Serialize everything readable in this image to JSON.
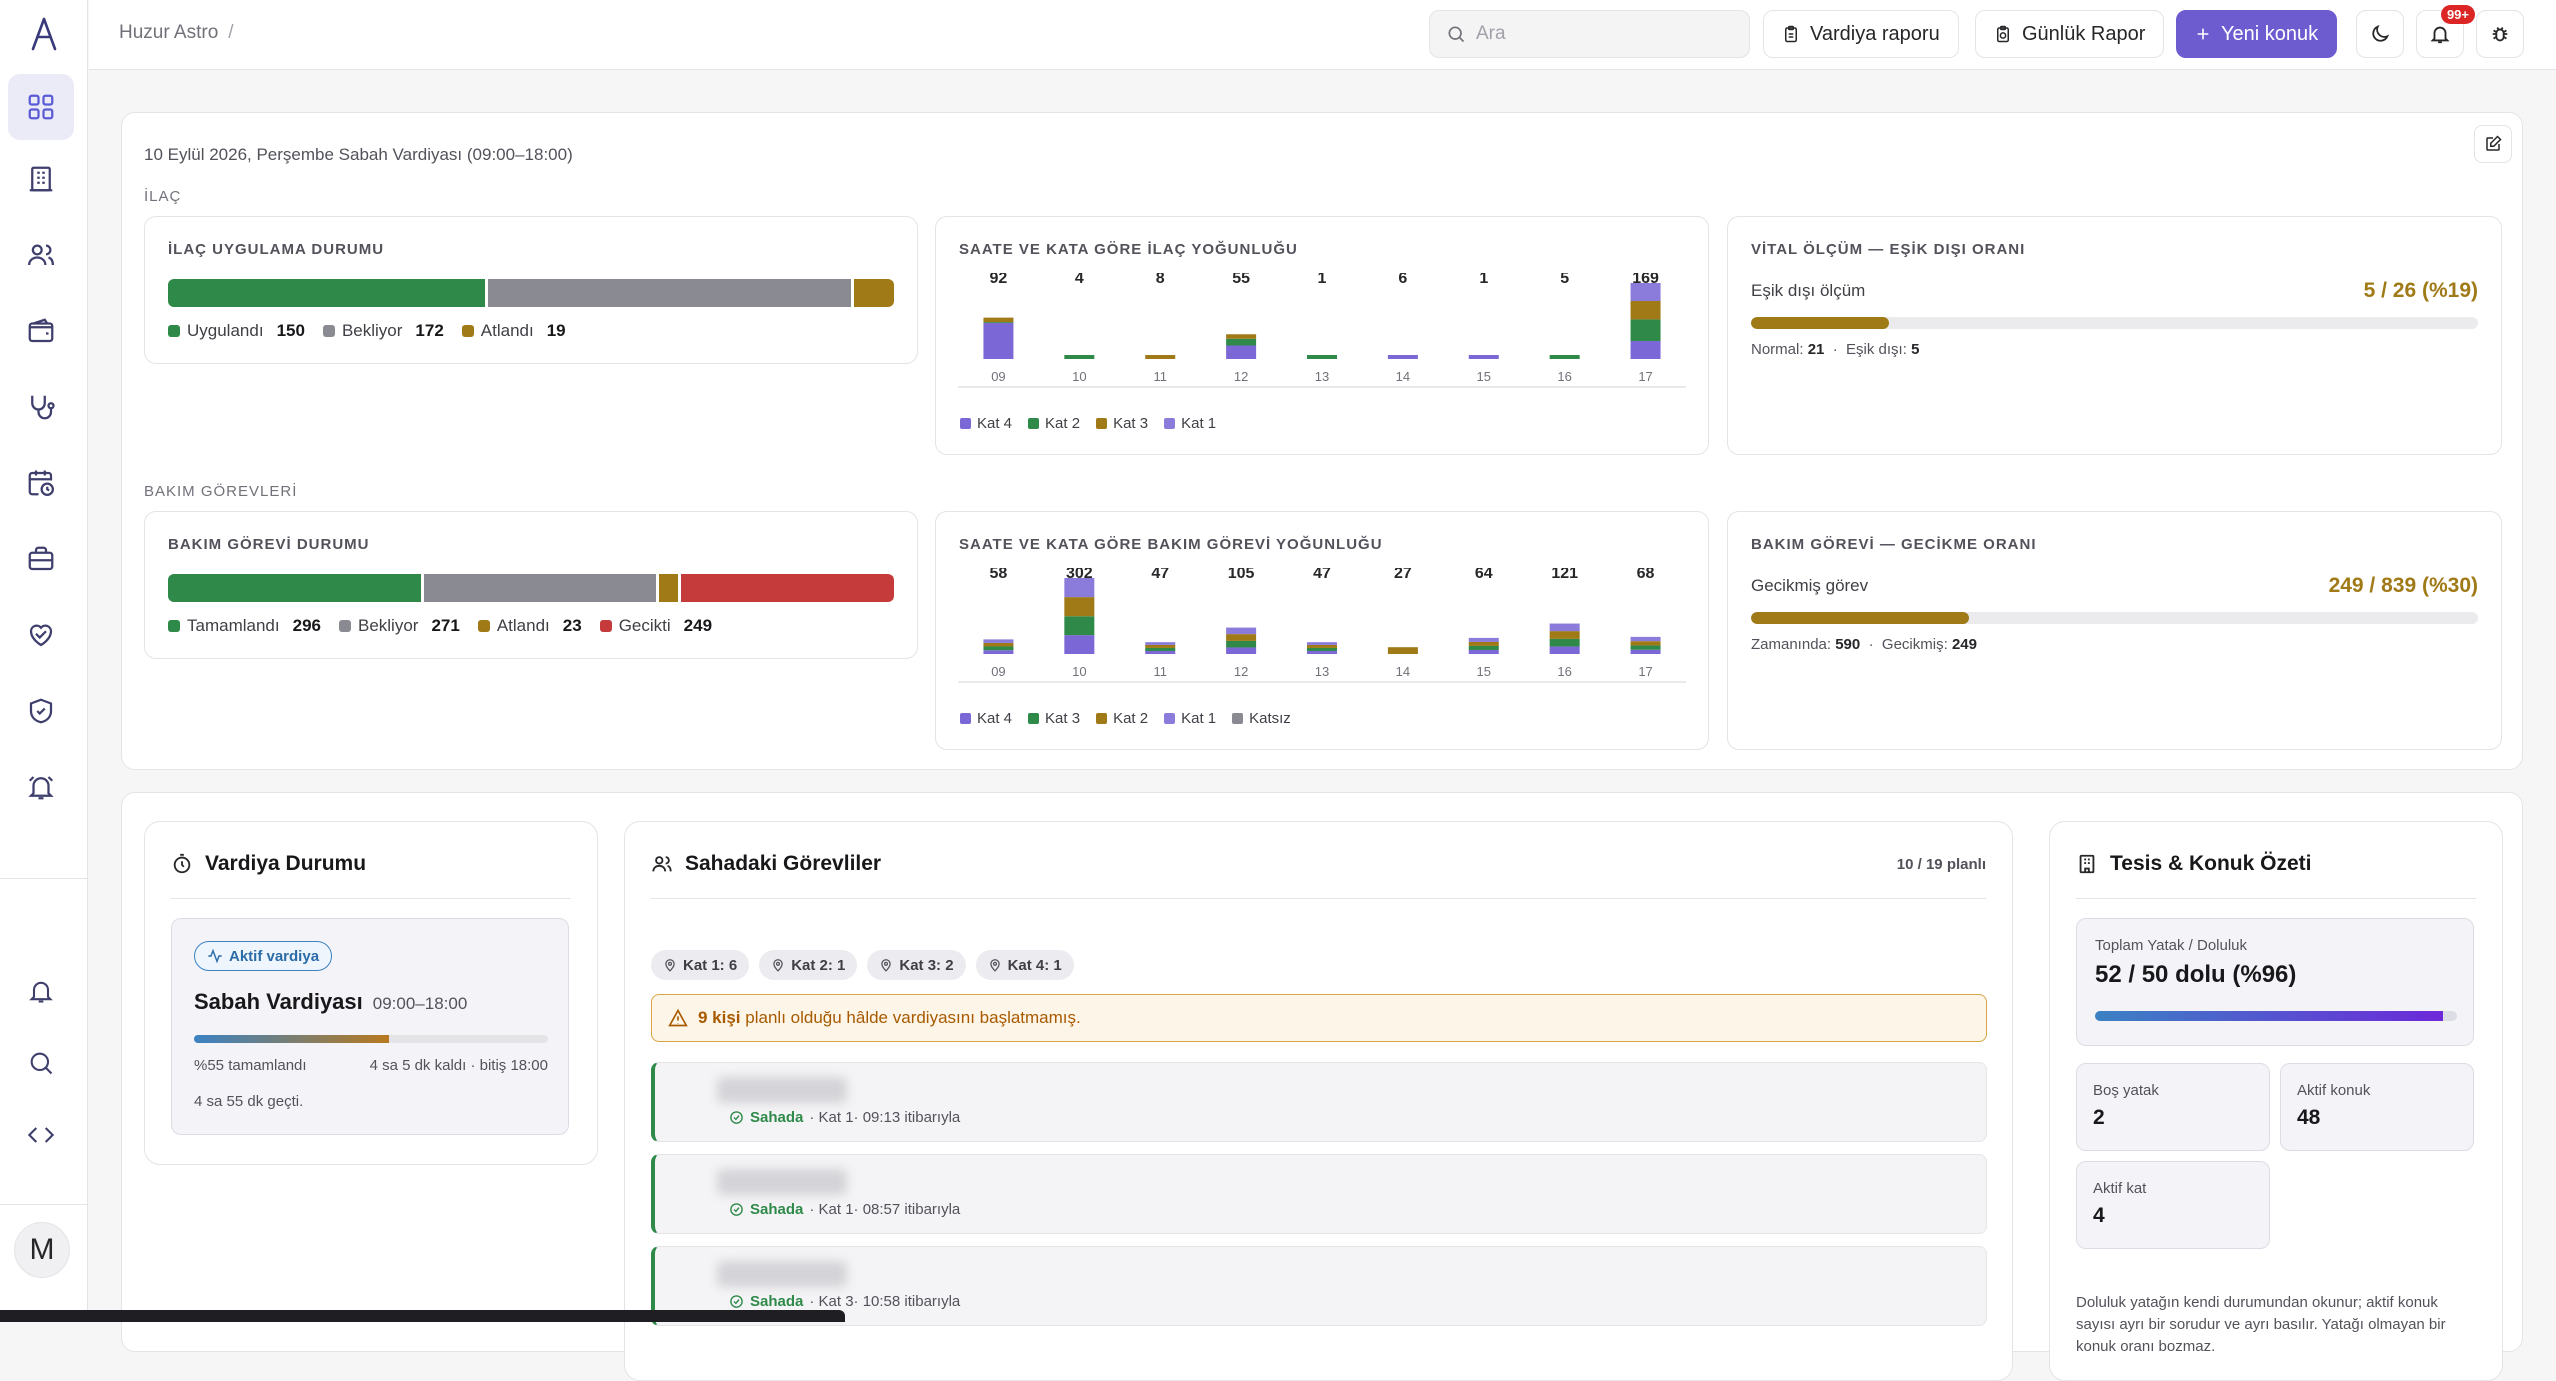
{
  "sidebar": {
    "items": [
      "dashboard-icon",
      "building-icon",
      "users-icon",
      "wallet-icon",
      "stethoscope-icon",
      "calendar-clock-icon",
      "briefcase-icon",
      "heart-handshake-icon",
      "shield-check-icon",
      "alarm-icon"
    ],
    "bottom": [
      "bell-icon",
      "search-icon",
      "code-icon"
    ],
    "avatar": "M"
  },
  "topbar": {
    "breadcrumb": "Huzur Astro",
    "breadcrumb_sep": "/",
    "search_placeholder": "Ara",
    "shift_report": "Vardiya raporu",
    "daily_report": "Günlük Rapor",
    "new_resident": "Yeni konuk",
    "notif_badge": "99+"
  },
  "overview": {
    "shift_line": "10 Eylül 2026, Perşembe Sabah Vardiyası (09:00–18:00)",
    "med_section": "İLAÇ",
    "care_section": "BAKIM GÖREVLERİ"
  },
  "med_status": {
    "title": "İLAÇ UYGULAMA DURUMU",
    "segments": [
      {
        "label": "Uygulandı",
        "value": 150,
        "color": "#2f8a4a"
      },
      {
        "label": "Bekliyor",
        "value": 172,
        "color": "#8a8a93"
      },
      {
        "label": "Atlandı",
        "value": 19,
        "color": "#a07a17"
      }
    ]
  },
  "med_density": {
    "title": "SAATE VE KATA GÖRE İLAÇ YOĞUNLUĞU",
    "hours": [
      "09",
      "10",
      "11",
      "12",
      "13",
      "14",
      "15",
      "16",
      "17"
    ],
    "totals": [
      92,
      4,
      8,
      55,
      1,
      6,
      1,
      5,
      169
    ],
    "series": [
      {
        "name": "Kat 4",
        "color": "#7b68d6",
        "values": [
          80,
          0,
          0,
          30,
          0,
          6,
          1,
          0,
          40
        ]
      },
      {
        "name": "Kat 2",
        "color": "#2f8a4a",
        "values": [
          2,
          4,
          0,
          15,
          1,
          0,
          0,
          5,
          48
        ]
      },
      {
        "name": "Kat 3",
        "color": "#a07a17",
        "values": [
          10,
          0,
          8,
          10,
          0,
          0,
          0,
          0,
          41
        ]
      },
      {
        "name": "Kat 1",
        "color": "#8b7cdb",
        "values": [
          0,
          0,
          0,
          0,
          0,
          0,
          0,
          0,
          40
        ]
      }
    ]
  },
  "vital_ratio": {
    "title": "VİTAL ÖLÇÜM — EŞİK DIŞI ORANI",
    "label": "Eşik dışı ölçüm",
    "value": "5 / 26  (%19)",
    "fraction": 0.19,
    "normal_label": "Normal:",
    "normal": "21",
    "out_label": "Eşik dışı:",
    "out": "5"
  },
  "care_status": {
    "title": "BAKIM GÖREVİ DURUMU",
    "segments": [
      {
        "label": "Tamamlandı",
        "value": 296,
        "color": "#2f8a4a"
      },
      {
        "label": "Bekliyor",
        "value": 271,
        "color": "#8a8a93"
      },
      {
        "label": "Atlandı",
        "value": 23,
        "color": "#a07a17"
      },
      {
        "label": "Gecikti",
        "value": 249,
        "color": "#c53b3b"
      }
    ]
  },
  "care_density": {
    "title": "SAATE VE KATA GÖRE BAKIM GÖREVİ YOĞUNLUĞU",
    "hours": [
      "09",
      "10",
      "11",
      "12",
      "13",
      "14",
      "15",
      "16",
      "17"
    ],
    "totals": [
      58,
      302,
      47,
      105,
      47,
      27,
      64,
      121,
      68
    ],
    "series": [
      {
        "name": "Kat 4",
        "color": "#7b68d6",
        "values": [
          15,
          75,
          12,
          26,
          12,
          0,
          16,
          30,
          17
        ]
      },
      {
        "name": "Kat 3",
        "color": "#2f8a4a",
        "values": [
          15,
          75,
          12,
          26,
          12,
          0,
          16,
          30,
          17
        ]
      },
      {
        "name": "Kat 2",
        "color": "#a07a17",
        "values": [
          14,
          76,
          12,
          27,
          12,
          27,
          16,
          31,
          17
        ]
      },
      {
        "name": "Kat 1",
        "color": "#8b7cdb",
        "values": [
          14,
          76,
          11,
          26,
          11,
          0,
          16,
          30,
          17
        ]
      },
      {
        "name": "Katsız",
        "color": "#8a8a93",
        "values": [
          0,
          0,
          0,
          0,
          0,
          0,
          0,
          0,
          0
        ]
      }
    ]
  },
  "delay_ratio": {
    "title": "BAKIM GÖREVİ — GECİKME ORANI",
    "label": "Gecikmiş görev",
    "value": "249 / 839  (%30)",
    "fraction": 0.3,
    "ontime_label": "Zamanında:",
    "ontime": "590",
    "late_label": "Gecikmiş:",
    "late": "249"
  },
  "shift_card": {
    "title": "Vardiya Durumu",
    "badge": "Aktif vardiya",
    "name": "Sabah Vardiyası",
    "hours": "09:00–18:00",
    "progress": 0.55,
    "progress_text": "%55 tamamlandı",
    "remaining": "4 sa 5 dk kaldı · bitiş 18:00",
    "elapsed": "4 sa 55 dk geçti."
  },
  "field_staff": {
    "title": "Sahadaki Görevliler",
    "count": "10 / 19 planlı",
    "chips": [
      "Kat 1: 6",
      "Kat 2: 1",
      "Kat 3: 2",
      "Kat 4: 1"
    ],
    "warning_bold": "9 kişi",
    "warning_rest": "planlı olduğu hâlde vardiyasını başlatmamış.",
    "rows": [
      {
        "status": "Sahada",
        "detail": "· Kat 1· 09:13 itibarıyla"
      },
      {
        "status": "Sahada",
        "detail": "· Kat 1· 08:57 itibarıyla"
      },
      {
        "status": "Sahada",
        "detail": "· Kat 3· 10:58 itibarıyla"
      }
    ]
  },
  "facility": {
    "title": "Tesis & Konuk Özeti",
    "occupancy_label": "Toplam Yatak / Doluluk",
    "occupancy_value": "52 / 50 dolu (%96)",
    "occupancy_fraction": 0.96,
    "empty_bed_label": "Boş yatak",
    "empty_bed": "2",
    "active_res_label": "Aktif konuk",
    "active_res": "48",
    "active_floor_label": "Aktif kat",
    "active_floor": "4",
    "note": "Doluluk yatağın kendi durumundan okunur; aktif konuk sayısı ayrı bir sorudur ve ayrı basılır. Yatağı olmayan bir konuk oranı bozmaz."
  }
}
